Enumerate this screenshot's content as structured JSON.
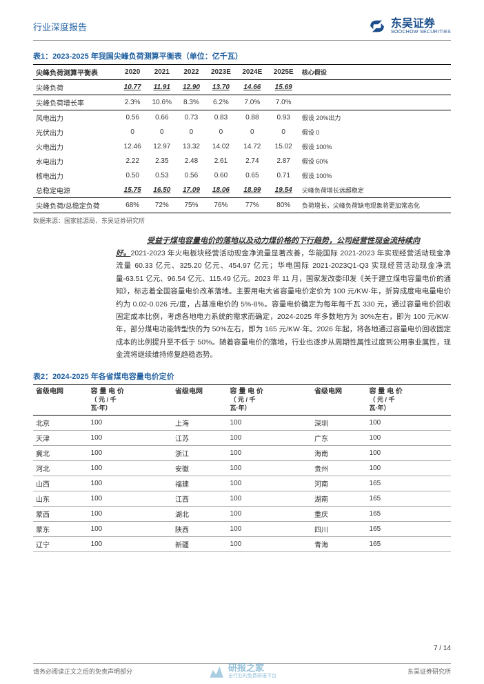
{
  "header": {
    "title": "行业深度报告"
  },
  "logo": {
    "cn": "东吴证券",
    "en": "SOOCHOW SECURITIES"
  },
  "table1": {
    "title": "表1：2023-2025 年我国尖峰负荷测算平衡表（单位：亿千瓦）",
    "col_headers": [
      "尖峰负荷测算平衡表",
      "2020",
      "2021",
      "2022",
      "2023E",
      "2024E",
      "2025E",
      "核心假设"
    ],
    "rows": [
      {
        "label": "尖峰负荷",
        "vals": [
          "10.77",
          "11.91",
          "12.90",
          "13.70",
          "14.66",
          "15.69"
        ],
        "assump": "",
        "bold": true,
        "ul": true
      },
      {
        "label": "尖峰负荷增长率",
        "vals": [
          "2.3%",
          "10.6%",
          "8.3%",
          "6.2%",
          "7.0%",
          "7.0%"
        ],
        "assump": "",
        "bold": false,
        "ul": true
      },
      {
        "label": "风电出力",
        "vals": [
          "0.56",
          "0.66",
          "0.73",
          "0.83",
          "0.88",
          "0.93"
        ],
        "assump": "假设 20%出力",
        "bold": false,
        "ul": false
      },
      {
        "label": "光伏出力",
        "vals": [
          "0",
          "0",
          "0",
          "0",
          "0",
          "0"
        ],
        "assump": "假设 0",
        "bold": false,
        "ul": false
      },
      {
        "label": "火电出力",
        "vals": [
          "12.46",
          "12.97",
          "13.32",
          "14.02",
          "14.72",
          "15.02"
        ],
        "assump": "假设 100%",
        "bold": false,
        "ul": false
      },
      {
        "label": "水电出力",
        "vals": [
          "2.22",
          "2.35",
          "2.48",
          "2.61",
          "2.74",
          "2.87"
        ],
        "assump": "假设 60%",
        "bold": false,
        "ul": false
      },
      {
        "label": "核电出力",
        "vals": [
          "0.50",
          "0.53",
          "0.56",
          "0.60",
          "0.65",
          "0.71"
        ],
        "assump": "假设 100%",
        "bold": false,
        "ul": false
      },
      {
        "label": "总稳定电源",
        "vals": [
          "15.75",
          "16.50",
          "17.09",
          "18.06",
          "18.99",
          "19.54"
        ],
        "assump": "尖峰负荷增长远超稳定",
        "bold": true,
        "ul": true
      },
      {
        "label": "尖峰负荷/总稳定负荷",
        "vals": [
          "68%",
          "72%",
          "75%",
          "76%",
          "77%",
          "80%"
        ],
        "assump": "负荷增长，尖峰负荷缺电现象将更加常态化",
        "bold": false,
        "ul": false
      }
    ],
    "source": "数据来源：国家能源局，东吴证券研究所"
  },
  "paragraph": {
    "heading": "受益于煤电容量电价的落地以及动力煤价格的下行趋势，公司经营性现金流持续向",
    "lead": "好。",
    "body": "2021-2023 年火电板块经营活动现金净流量显著改善，华能国际 2021-2023 年实现经营活动现金净流量 60.33 亿元、325.20 亿元、454.97 亿元；华电国际 2021-2023Q1-Q3 实现经营活动现金净流量-63.51 亿元、96.54 亿元、115.49 亿元。2023 年 11 月，国家发改委印发《关于建立煤电容量电价的通知》，标志着全国容量电价改革落地。主要用电大省容量电价定价为 100 元/KW·年，折算成度电电量电价约为 0.02-0.026 元/度，占基准电价的 5%-8%。容量电价确定为每年每千瓦 330 元，通过容量电价回收固定成本比例，考虑各地电力系统的需求而确定，2024-2025 年多数地方为 30%左右，即为 100 元/KW·年，部分煤电功能转型快的为 50%左右，即为 165 元/KW·年。2026 年起，将各地通过容量电价回收固定成本的比例提升至不低于 50%。随着容量电价的落地，行业也逐步从周期性属性过度到公用事业属性，现金流将继续维持修复趋稳态势。"
  },
  "table2": {
    "title": "表2：2024-2025 年各省煤电容量电价定价",
    "header_label": "省级电网",
    "header_price_l1": "容 量 电 价",
    "header_price_l2": "（ 元 / 千",
    "header_price_l3": "瓦·年）",
    "rows": [
      [
        "北京",
        "100",
        "上海",
        "100",
        "深圳",
        "100"
      ],
      [
        "天津",
        "100",
        "江苏",
        "100",
        "广东",
        "100"
      ],
      [
        "冀北",
        "100",
        "浙江",
        "100",
        "海南",
        "100"
      ],
      [
        "河北",
        "100",
        "安徽",
        "100",
        "贵州",
        "100"
      ],
      [
        "山西",
        "100",
        "福建",
        "100",
        "河南",
        "165"
      ],
      [
        "山东",
        "100",
        "江西",
        "100",
        "湖南",
        "165"
      ],
      [
        "蒙西",
        "100",
        "湖北",
        "100",
        "重庆",
        "165"
      ],
      [
        "蒙东",
        "100",
        "陕西",
        "100",
        "四川",
        "165"
      ],
      [
        "辽宁",
        "100",
        "新疆",
        "100",
        "青海",
        "165"
      ]
    ]
  },
  "footer": {
    "disclaimer": "请务必阅读正文之后的免责声明部分",
    "inst": "东吴证券研究所",
    "page": "7 / 14"
  },
  "watermark": {
    "cn": "研报之家",
    "en": "全行业的免费研报平台"
  }
}
